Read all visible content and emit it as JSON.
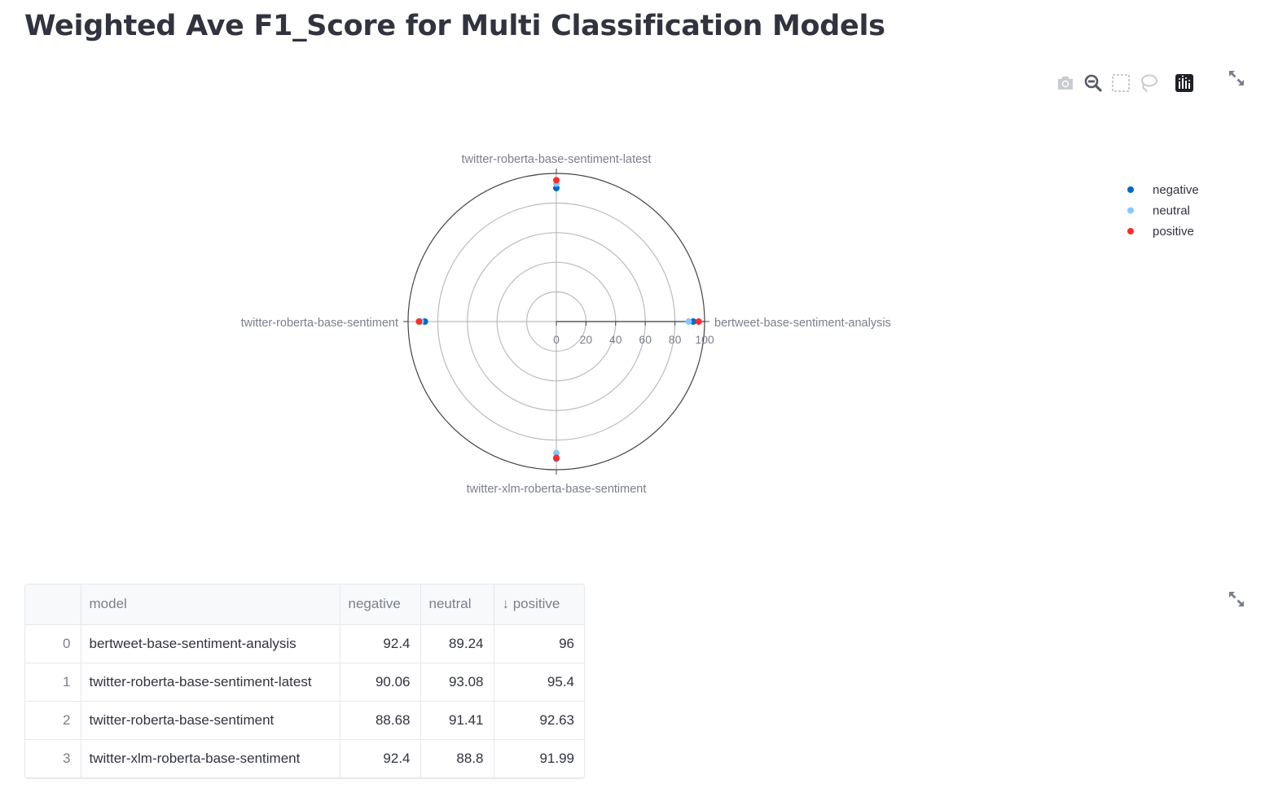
{
  "page": {
    "title": "Weighted Ave F1_Score for Multi Classification Models"
  },
  "modebar": {
    "icons": [
      "camera-icon",
      "zoom-icon",
      "box-select-icon",
      "lasso-select-icon",
      "plotly-logo-icon"
    ]
  },
  "chart_data": {
    "type": "scatterpolar",
    "angular_categories": [
      "bertweet-base-sentiment-analysis",
      "twitter-roberta-base-sentiment-latest",
      "twitter-roberta-base-sentiment",
      "twitter-xlm-roberta-base-sentiment"
    ],
    "radial_range": [
      0,
      100
    ],
    "radial_ticks": [
      "0",
      "20",
      "40",
      "60",
      "80",
      "100"
    ],
    "series": [
      {
        "name": "negative",
        "color": "#0068c9",
        "values": [
          92.4,
          90.06,
          88.68,
          92.4
        ]
      },
      {
        "name": "neutral",
        "color": "#83c9ff",
        "values": [
          89.24,
          93.08,
          91.41,
          88.8
        ]
      },
      {
        "name": "positive",
        "color": "#ff2b2b",
        "values": [
          96,
          95.4,
          92.63,
          91.99
        ]
      }
    ],
    "legend": "top-right",
    "grid": true
  },
  "table": {
    "columns": [
      "",
      "model",
      "negative",
      "neutral",
      "↓ positive"
    ],
    "rows": [
      {
        "index": "0",
        "model": "bertweet-base-sentiment-analysis",
        "negative": "92.4",
        "neutral": "89.24",
        "positive": "96"
      },
      {
        "index": "1",
        "model": "twitter-roberta-base-sentiment-latest",
        "negative": "90.06",
        "neutral": "93.08",
        "positive": "95.4"
      },
      {
        "index": "2",
        "model": "twitter-roberta-base-sentiment",
        "negative": "88.68",
        "neutral": "91.41",
        "positive": "92.63"
      },
      {
        "index": "3",
        "model": "twitter-xlm-roberta-base-sentiment",
        "negative": "92.4",
        "neutral": "88.8",
        "positive": "91.99"
      }
    ]
  }
}
